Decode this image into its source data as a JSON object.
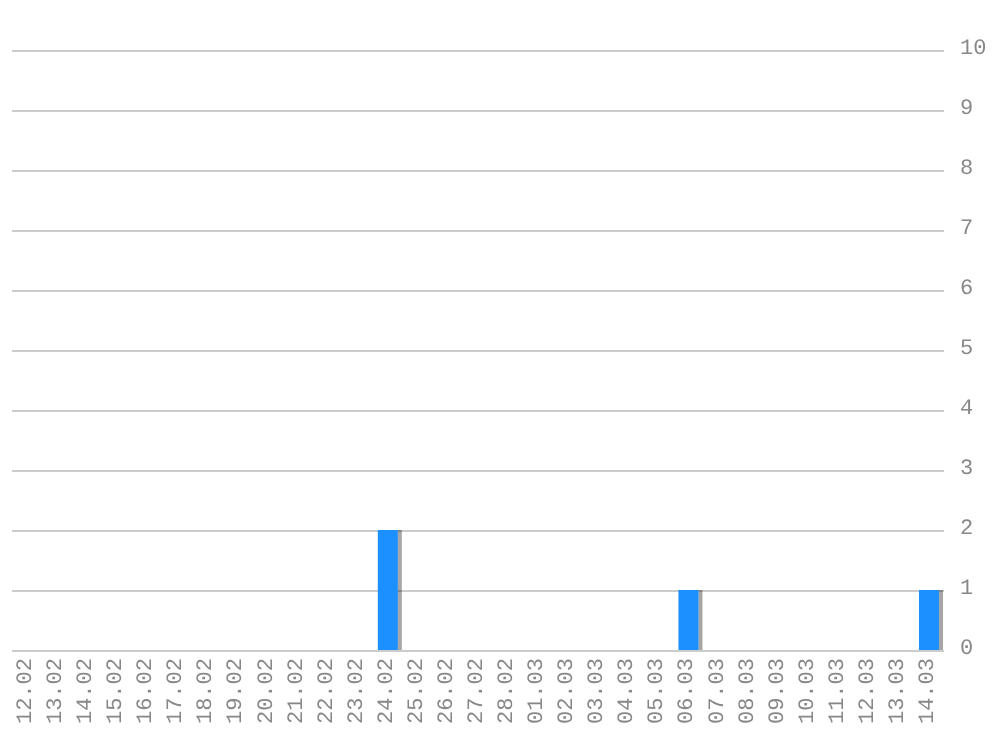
{
  "chart_data": {
    "type": "bar",
    "categories": [
      "12.02",
      "13.02",
      "14.02",
      "15.02",
      "16.02",
      "17.02",
      "18.02",
      "19.02",
      "20.02",
      "21.02",
      "22.02",
      "23.02",
      "24.02",
      "25.02",
      "26.02",
      "27.02",
      "28.02",
      "01.03",
      "02.03",
      "03.03",
      "04.03",
      "05.03",
      "06.03",
      "07.03",
      "08.03",
      "09.03",
      "10.03",
      "11.03",
      "12.03",
      "13.03",
      "14.03"
    ],
    "values": [
      0,
      0,
      0,
      0,
      0,
      0,
      0,
      0,
      0,
      0,
      0,
      0,
      2,
      0,
      0,
      0,
      0,
      0,
      0,
      0,
      0,
      0,
      1,
      0,
      0,
      0,
      0,
      0,
      0,
      0,
      1
    ],
    "color": "#1e90ff",
    "ylim": [
      0,
      10
    ],
    "yticks": [
      0,
      1,
      2,
      3,
      4,
      5,
      6,
      7,
      8,
      9,
      10
    ],
    "grid": "y"
  }
}
